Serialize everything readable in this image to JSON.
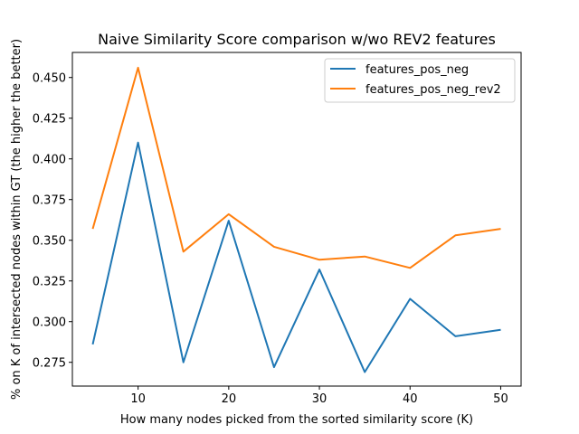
{
  "chart_data": {
    "type": "line",
    "title": "Naive Similarity Score comparison w/wo REV2 features",
    "xlabel": "How many nodes picked from the sorted similarity score (K)",
    "ylabel": "% on K of intersected nodes within GT (the higher the better)",
    "x": [
      5,
      10,
      15,
      20,
      25,
      30,
      35,
      40,
      45,
      50
    ],
    "xlim": [
      2.75,
      52.25
    ],
    "ylim": [
      0.2604,
      0.4654
    ],
    "xticks": [
      10,
      20,
      30,
      40,
      50
    ],
    "yticks": [
      0.275,
      0.3,
      0.325,
      0.35,
      0.375,
      0.4,
      0.425,
      0.45
    ],
    "ytick_labels": [
      "0.275",
      "0.300",
      "0.325",
      "0.350",
      "0.375",
      "0.400",
      "0.425",
      "0.450"
    ],
    "grid": false,
    "legend_position": "top-right",
    "series": [
      {
        "name": "features_pos_neg",
        "color": "#1f77b4",
        "values": [
          0.286,
          0.41,
          0.275,
          0.362,
          0.272,
          0.332,
          0.269,
          0.314,
          0.291,
          0.295
        ]
      },
      {
        "name": "features_pos_neg_rev2",
        "color": "#ff7f0e",
        "values": [
          0.357,
          0.456,
          0.343,
          0.366,
          0.346,
          0.338,
          0.34,
          0.333,
          0.353,
          0.357
        ]
      }
    ]
  }
}
